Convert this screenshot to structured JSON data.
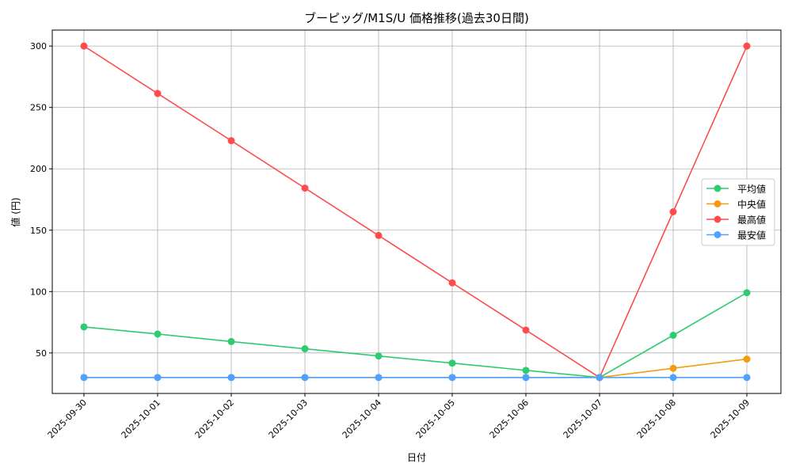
{
  "chart_data": {
    "type": "line",
    "title": "ブーピッグ/M1S/U 価格推移(過去30日間)",
    "xlabel": "日付",
    "ylabel": "値 (円)",
    "ylim": [
      17,
      313
    ],
    "yticks": [
      50,
      100,
      150,
      200,
      250,
      300
    ],
    "grid": true,
    "legend_position": "center-right",
    "categories": [
      "2025-09-30",
      "2025-10-01",
      "2025-10-02",
      "2025-10-03",
      "2025-10-04",
      "2025-10-05",
      "2025-10-06",
      "2025-10-07",
      "2025-10-08",
      "2025-10-09"
    ],
    "series": [
      {
        "name": "平均値",
        "color": "#2ecc71",
        "values": [
          71.2,
          65.4,
          59.3,
          53.4,
          47.5,
          41.7,
          35.8,
          30,
          64.4,
          99.1
        ]
      },
      {
        "name": "中央値",
        "color": "#f39c12",
        "values": [
          30,
          30,
          30,
          30,
          30,
          30,
          30,
          30,
          37.5,
          45
        ]
      },
      {
        "name": "最高値",
        "color": "#ff4d4d",
        "values": [
          300,
          261.4,
          222.9,
          184.3,
          145.7,
          107.1,
          68.6,
          30,
          165,
          300
        ]
      },
      {
        "name": "最安値",
        "color": "#4da3ff",
        "values": [
          30,
          30,
          30,
          30,
          30,
          30,
          30,
          30,
          30,
          30
        ]
      }
    ]
  }
}
